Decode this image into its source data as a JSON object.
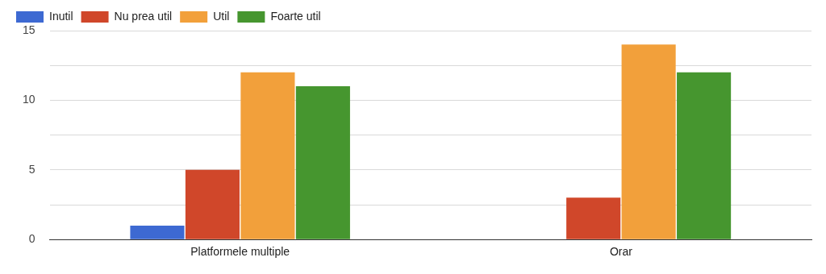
{
  "chart_data": {
    "type": "bar",
    "categories": [
      "Platformele multiple",
      "Orar"
    ],
    "series": [
      {
        "name": "Inutil",
        "color": "#3d69d2",
        "values": [
          1,
          0
        ]
      },
      {
        "name": "Nu prea util",
        "color": "#d0472a",
        "values": [
          5,
          3
        ]
      },
      {
        "name": "Util",
        "color": "#f2a03b",
        "values": [
          12,
          14
        ]
      },
      {
        "name": "Foarte util",
        "color": "#46962f",
        "values": [
          11,
          12
        ]
      }
    ],
    "ylim": [
      0,
      15
    ],
    "yticks": [
      0,
      {
        "value": 2.5,
        "label": null
      },
      5,
      {
        "value": 7.5,
        "label": null
      },
      10,
      {
        "value": 12.5,
        "label": null
      },
      15
    ],
    "grid": "y",
    "legend": "top left"
  }
}
